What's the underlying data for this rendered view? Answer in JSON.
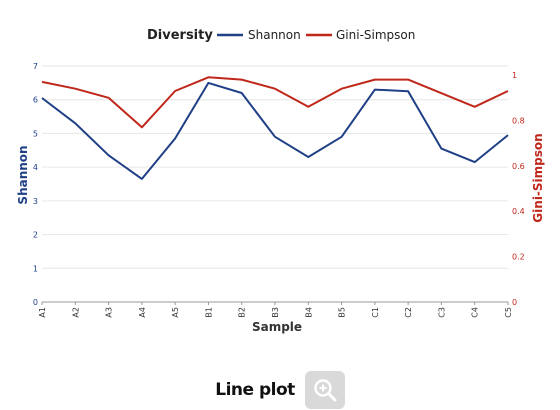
{
  "chart_data": {
    "type": "line",
    "legend_title": "Diversity",
    "legend_position": "top",
    "xlabel": "Sample",
    "ylabel_left": "Shannon",
    "ylabel_right": "Gini-Simpson",
    "categories": [
      "A1",
      "A2",
      "A3",
      "A4",
      "A5",
      "B1",
      "B2",
      "B3",
      "B4",
      "B5",
      "C1",
      "C2",
      "C3",
      "C4",
      "C5"
    ],
    "ylim_left": [
      0,
      7
    ],
    "yticks_left": [
      "0",
      "1",
      "2",
      "3",
      "4",
      "5",
      "6",
      "7"
    ],
    "ylim_right": [
      0,
      1.04
    ],
    "yticks_right": [
      "0",
      "0.2",
      "0.4",
      "0.6",
      "0.8",
      "1"
    ],
    "series": [
      {
        "name": "Shannon",
        "axis": "left",
        "color": "#1f3f86",
        "values": [
          6.05,
          5.3,
          4.35,
          3.65,
          4.85,
          6.5,
          6.2,
          4.9,
          4.3,
          4.9,
          6.3,
          6.25,
          4.55,
          4.15,
          4.95
        ]
      },
      {
        "name": "Gini-Simpson",
        "axis": "right",
        "color": "#c0271b",
        "values": [
          0.97,
          0.94,
          0.9,
          0.77,
          0.93,
          0.99,
          0.98,
          0.94,
          0.86,
          0.94,
          0.98,
          0.98,
          0.92,
          0.86,
          0.93
        ]
      }
    ],
    "grid": true
  },
  "footer": {
    "title": "Line plot",
    "zoom_icon": "zoom-in-icon"
  }
}
